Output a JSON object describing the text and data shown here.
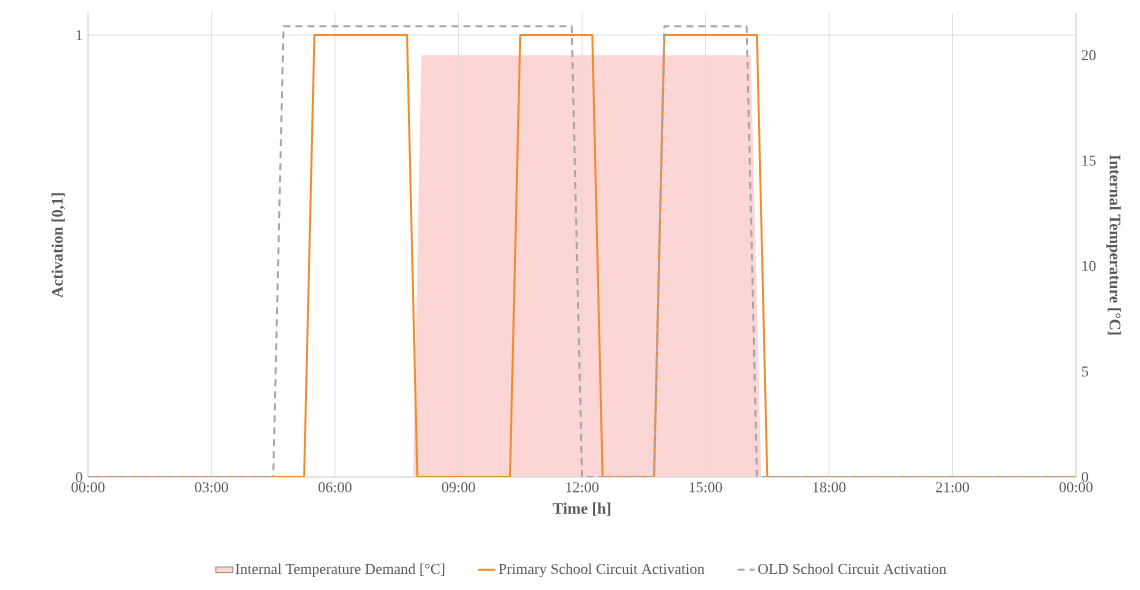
{
  "chart_data": {
    "type": "line",
    "xlabel": "Time [h]",
    "ylabel": "Activation [0,1]",
    "y2label": "Internal Temperature [°C]",
    "xlim": [
      0,
      24
    ],
    "xticks": [
      {
        "value": 0,
        "label": "00:00"
      },
      {
        "value": 3,
        "label": "03:00"
      },
      {
        "value": 6,
        "label": "06:00"
      },
      {
        "value": 9,
        "label": "09:00"
      },
      {
        "value": 12,
        "label": "12:00"
      },
      {
        "value": 15,
        "label": "15:00"
      },
      {
        "value": 18,
        "label": "18:00"
      },
      {
        "value": 21,
        "label": "21:00"
      },
      {
        "value": 24,
        "label": "00:00"
      }
    ],
    "ylim": [
      0,
      1.05
    ],
    "yticks": [
      0,
      1
    ],
    "y2lim": [
      0,
      22
    ],
    "y2ticks": [
      0,
      5,
      10,
      15,
      20
    ],
    "grid": true,
    "legend": "bottom",
    "series": [
      {
        "name": "Internal Temperature Demand [°C]",
        "type": "area",
        "axis": "y2",
        "color": "#fcd5d5",
        "x": [
          0,
          7.9,
          8.1,
          16.1,
          16.35,
          24
        ],
        "values": [
          0,
          0,
          20,
          20,
          0,
          0
        ]
      },
      {
        "name": "Primary School Circuit Activation",
        "color": "#f28a2e",
        "line_style": "solid",
        "x": [
          0,
          5.25,
          5.5,
          7.75,
          8,
          10.25,
          10.5,
          12.25,
          12.5,
          13.75,
          14,
          16.25,
          16.5,
          24
        ],
        "values": [
          0,
          0,
          1,
          1,
          0,
          0,
          1,
          1,
          0,
          0,
          1,
          1,
          0,
          0
        ]
      },
      {
        "name": "OLD School Circuit Activation",
        "color": "#a6a6a6",
        "line_style": "dashed",
        "x": [
          0,
          4.5,
          4.75,
          11.75,
          12,
          13.75,
          14,
          16,
          16.25,
          24
        ],
        "values": [
          0,
          0,
          1.02,
          1.02,
          0,
          0,
          1.02,
          1.02,
          0,
          0
        ]
      }
    ]
  }
}
